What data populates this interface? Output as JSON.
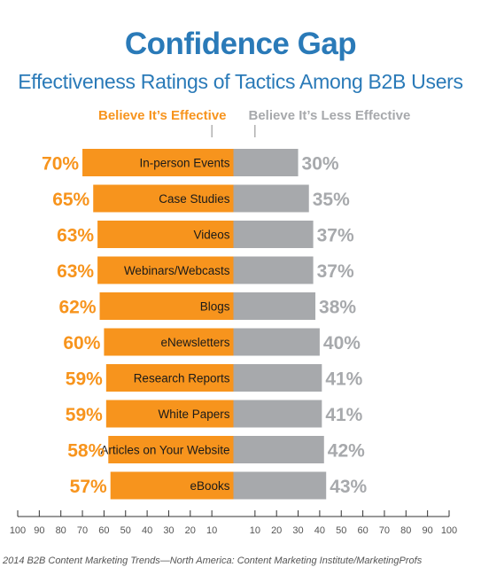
{
  "title": "Confidence Gap",
  "subtitle": "Effectiveness Ratings of Tactics Among B2B Users",
  "footer": "2014 B2B Content Marketing Trends—North America: Content Marketing Institute/MarketingProfs",
  "chart_data": {
    "type": "bar",
    "orientation": "horizontal-diverging",
    "categories": [
      "In-person Events",
      "Case Studies",
      "Videos",
      "Webinars/Webcasts",
      "Blogs",
      "eNewsletters",
      "Research Reports",
      "White Papers",
      "Articles on Your Website",
      "eBooks"
    ],
    "series": [
      {
        "name": "Believe It’s Effective",
        "color": "#f7941d",
        "side": "left",
        "values": [
          70,
          65,
          63,
          63,
          62,
          60,
          59,
          59,
          58,
          57
        ],
        "labels": [
          "70%",
          "65%",
          "63%",
          "63%",
          "62%",
          "60%",
          "59%",
          "59%",
          "58%",
          "57%"
        ]
      },
      {
        "name": "Believe It’s Less Effective",
        "color": "#a7a9ac",
        "side": "right",
        "values": [
          30,
          35,
          37,
          37,
          38,
          40,
          41,
          41,
          42,
          43
        ],
        "labels": [
          "30%",
          "35%",
          "37%",
          "37%",
          "38%",
          "40%",
          "41%",
          "41%",
          "42%",
          "43%"
        ]
      }
    ],
    "axis": {
      "range": [
        -100,
        100
      ],
      "tick_labels": [
        "100",
        "90",
        "80",
        "70",
        "60",
        "50",
        "40",
        "30",
        "20",
        "10",
        "10",
        "20",
        "30",
        "40",
        "50",
        "60",
        "70",
        "80",
        "90",
        "100"
      ]
    }
  }
}
